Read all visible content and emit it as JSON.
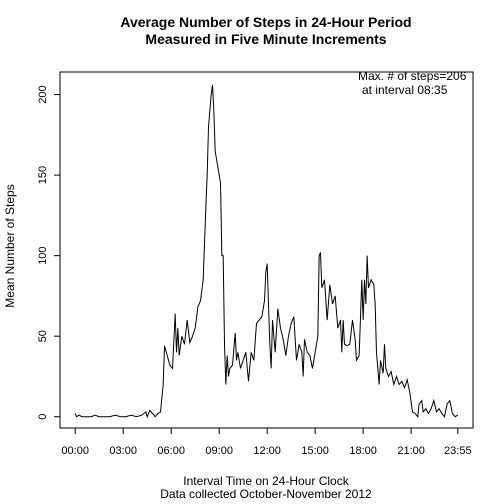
{
  "chart_data": {
    "type": "line",
    "title": [
      "Average Number of Steps in 24-Hour Period",
      "Measured in Five Minute Increments"
    ],
    "x_label": "Interval Time on 24-Hour Clock",
    "subtitle": "Data collected October-November 2012",
    "y_label": "Mean Number of Steps",
    "annotation": [
      "Max. # of steps=206",
      "at interval 08:35"
    ],
    "xlim": [
      -57,
      1492
    ],
    "ylim": [
      -7,
      214
    ],
    "xticks": [
      {
        "value": 0,
        "label": "00:00"
      },
      {
        "value": 180,
        "label": "03:00"
      },
      {
        "value": 360,
        "label": "06:00"
      },
      {
        "value": 540,
        "label": "09:00"
      },
      {
        "value": 720,
        "label": "12:00"
      },
      {
        "value": 900,
        "label": "15:00"
      },
      {
        "value": 1080,
        "label": "18:00"
      },
      {
        "value": 1260,
        "label": "21:00"
      },
      {
        "value": 1435,
        "label": "23:55"
      }
    ],
    "yticks": [
      0,
      50,
      100,
      150,
      200
    ],
    "color": "#000000",
    "x": [
      0,
      5,
      15,
      25,
      40,
      60,
      75,
      90,
      110,
      130,
      150,
      170,
      190,
      210,
      230,
      250,
      265,
      270,
      280,
      290,
      300,
      310,
      320,
      330,
      335,
      345,
      355,
      365,
      375,
      380,
      385,
      390,
      400,
      410,
      420,
      430,
      440,
      450,
      460,
      470,
      480,
      490,
      495,
      500,
      505,
      510,
      515,
      520,
      525,
      535,
      545,
      550,
      555,
      560,
      565,
      570,
      575,
      580,
      590,
      600,
      605,
      610,
      620,
      630,
      640,
      650,
      660,
      670,
      680,
      690,
      700,
      710,
      715,
      720,
      725,
      730,
      735,
      740,
      750,
      760,
      770,
      780,
      790,
      800,
      810,
      820,
      830,
      840,
      850,
      855,
      860,
      870,
      880,
      890,
      900,
      910,
      915,
      920,
      925,
      935,
      945,
      955,
      965,
      975,
      985,
      995,
      1000,
      1005,
      1010,
      1020,
      1030,
      1040,
      1050,
      1055,
      1065,
      1075,
      1080,
      1085,
      1090,
      1095,
      1100,
      1110,
      1120,
      1125,
      1130,
      1140,
      1145,
      1155,
      1160,
      1165,
      1175,
      1185,
      1195,
      1205,
      1215,
      1225,
      1235,
      1245,
      1255,
      1265,
      1275,
      1285,
      1290,
      1300,
      1305,
      1315,
      1325,
      1335,
      1345,
      1355,
      1365,
      1375,
      1385,
      1395,
      1405,
      1415,
      1425,
      1435
    ],
    "values": [
      2,
      0,
      1,
      0,
      0,
      0,
      1,
      0,
      0,
      0,
      1,
      0,
      0,
      1,
      0,
      1,
      3,
      0,
      4,
      2,
      0,
      2,
      3,
      20,
      44,
      38,
      32,
      30,
      64,
      40,
      55,
      38,
      50,
      45,
      60,
      46,
      50,
      55,
      68,
      72,
      85,
      130,
      150,
      180,
      190,
      200,
      206,
      190,
      165,
      155,
      145,
      100,
      100,
      45,
      20,
      38,
      25,
      30,
      32,
      52,
      35,
      40,
      30,
      35,
      40,
      22,
      40,
      35,
      58,
      60,
      62,
      72,
      90,
      95,
      70,
      45,
      30,
      60,
      40,
      67,
      55,
      48,
      38,
      50,
      58,
      62,
      35,
      45,
      40,
      25,
      48,
      40,
      38,
      30,
      40,
      50,
      100,
      102,
      80,
      85,
      60,
      82,
      70,
      75,
      55,
      60,
      40,
      60,
      45,
      44,
      45,
      60,
      48,
      35,
      38,
      85,
      60,
      85,
      70,
      100,
      80,
      85,
      82,
      70,
      40,
      20,
      35,
      27,
      45,
      30,
      25,
      28,
      20,
      25,
      20,
      22,
      18,
      23,
      15,
      3,
      2,
      0,
      8,
      10,
      3,
      5,
      2,
      5,
      10,
      3,
      5,
      2,
      0,
      8,
      10,
      2,
      0,
      1
    ]
  }
}
